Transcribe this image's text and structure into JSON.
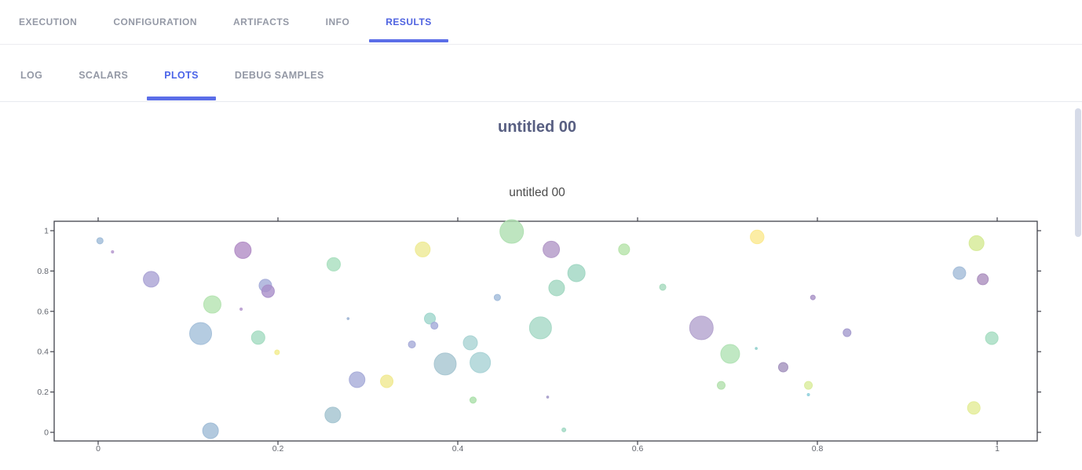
{
  "main_tabs": {
    "active": "RESULTS",
    "items": [
      {
        "label": "EXECUTION"
      },
      {
        "label": "CONFIGURATION"
      },
      {
        "label": "ARTIFACTS"
      },
      {
        "label": "INFO"
      },
      {
        "label": "RESULTS"
      }
    ]
  },
  "sub_tabs": {
    "active": "PLOTS",
    "items": [
      {
        "label": "LOG"
      },
      {
        "label": "SCALARS"
      },
      {
        "label": "PLOTS"
      },
      {
        "label": "DEBUG SAMPLES"
      }
    ]
  },
  "accent_color": "#4e62e0",
  "card_title": "untitled 00",
  "chart_data": {
    "type": "scatter",
    "title": "untitled 00",
    "xlabel": "",
    "ylabel": "",
    "xlim": [
      -0.05,
      1.045
    ],
    "ylim": [
      -0.045,
      1.045
    ],
    "grid": false,
    "legend": null,
    "x_ticks": [
      0,
      0.2,
      0.4,
      0.6,
      0.8,
      1
    ],
    "x_tick_labels": [
      "0",
      "0.2",
      "0.4",
      "0.6",
      "0.8",
      "1"
    ],
    "y_ticks": [
      0,
      0.2,
      0.4,
      0.6,
      0.8,
      1
    ],
    "y_tick_labels": [
      "0",
      "0.2",
      "0.4",
      "0.6",
      "0.8",
      "1"
    ],
    "points": [
      {
        "x": 0.002,
        "y": 0.95,
        "r": 4,
        "color": "#9fbcd8"
      },
      {
        "x": 0.016,
        "y": 0.895,
        "r": 1.5,
        "color": "#b79bd0"
      },
      {
        "x": 0.059,
        "y": 0.759,
        "r": 10,
        "color": "#aaa2d4"
      },
      {
        "x": 0.161,
        "y": 0.903,
        "r": 10.5,
        "color": "#b18cc5"
      },
      {
        "x": 0.186,
        "y": 0.728,
        "r": 8,
        "color": "#a4abd8"
      },
      {
        "x": 0.189,
        "y": 0.7,
        "r": 8,
        "color": "#a98fc9"
      },
      {
        "x": 0.127,
        "y": 0.634,
        "r": 11,
        "color": "#b4e3b0"
      },
      {
        "x": 0.159,
        "y": 0.611,
        "r": 1.5,
        "color": "#b79bd0"
      },
      {
        "x": 0.114,
        "y": 0.49,
        "r": 14,
        "color": "#a3bfd9"
      },
      {
        "x": 0.178,
        "y": 0.47,
        "r": 8.5,
        "color": "#a3dbc0"
      },
      {
        "x": 0.199,
        "y": 0.397,
        "r": 3,
        "color": "#f2ec8d"
      },
      {
        "x": 0.262,
        "y": 0.833,
        "r": 8.5,
        "color": "#a8dfbe"
      },
      {
        "x": 0.361,
        "y": 0.907,
        "r": 9.5,
        "color": "#eeea93"
      },
      {
        "x": 0.46,
        "y": 0.996,
        "r": 15,
        "color": "#aedfb0"
      },
      {
        "x": 0.444,
        "y": 0.669,
        "r": 4,
        "color": "#a0bada"
      },
      {
        "x": 0.278,
        "y": 0.564,
        "r": 1.3,
        "color": "#9eb4d4"
      },
      {
        "x": 0.369,
        "y": 0.564,
        "r": 7,
        "color": "#9fd6cc"
      },
      {
        "x": 0.374,
        "y": 0.529,
        "r": 4.5,
        "color": "#a2aad8"
      },
      {
        "x": 0.349,
        "y": 0.436,
        "r": 4.5,
        "color": "#a6abd8"
      },
      {
        "x": 0.414,
        "y": 0.444,
        "r": 9,
        "color": "#a9d3d3"
      },
      {
        "x": 0.386,
        "y": 0.339,
        "r": 14,
        "color": "#a6c5d1"
      },
      {
        "x": 0.425,
        "y": 0.346,
        "r": 13,
        "color": "#a8d2d5"
      },
      {
        "x": 0.288,
        "y": 0.261,
        "r": 10,
        "color": "#a6abd8"
      },
      {
        "x": 0.321,
        "y": 0.253,
        "r": 8,
        "color": "#f0e98f"
      },
      {
        "x": 0.417,
        "y": 0.16,
        "r": 4,
        "color": "#aadfa9"
      },
      {
        "x": 0.261,
        "y": 0.086,
        "r": 10,
        "color": "#a2c3cf"
      },
      {
        "x": 0.125,
        "y": 0.008,
        "r": 10,
        "color": "#9fbcd6"
      },
      {
        "x": 0.518,
        "y": 0.012,
        "r": 2.5,
        "color": "#9fd8c2"
      },
      {
        "x": 0.5,
        "y": 0.175,
        "r": 1.3,
        "color": "#a39ac8"
      },
      {
        "x": 0.504,
        "y": 0.907,
        "r": 10.5,
        "color": "#b297c7"
      },
      {
        "x": 0.585,
        "y": 0.907,
        "r": 7,
        "color": "#b5e3a9"
      },
      {
        "x": 0.532,
        "y": 0.79,
        "r": 11,
        "color": "#9fd6c2"
      },
      {
        "x": 0.51,
        "y": 0.716,
        "r": 10,
        "color": "#a1d7c0"
      },
      {
        "x": 0.628,
        "y": 0.72,
        "r": 4,
        "color": "#a5dabd"
      },
      {
        "x": 0.733,
        "y": 0.969,
        "r": 8.7,
        "color": "#fbe98e"
      },
      {
        "x": 0.795,
        "y": 0.669,
        "r": 3,
        "color": "#a891c6"
      },
      {
        "x": 0.492,
        "y": 0.518,
        "r": 14,
        "color": "#a5d8c5"
      },
      {
        "x": 0.671,
        "y": 0.518,
        "r": 15,
        "color": "#b3a3ce"
      },
      {
        "x": 0.703,
        "y": 0.389,
        "r": 12,
        "color": "#b0e2b4"
      },
      {
        "x": 0.732,
        "y": 0.416,
        "r": 1.3,
        "color": "#8fd0cc"
      },
      {
        "x": 0.762,
        "y": 0.323,
        "r": 6,
        "color": "#a291bd"
      },
      {
        "x": 0.693,
        "y": 0.233,
        "r": 5,
        "color": "#b2e0ac"
      },
      {
        "x": 0.79,
        "y": 0.233,
        "r": 5,
        "color": "#d9ec9b"
      },
      {
        "x": 0.79,
        "y": 0.187,
        "r": 1.5,
        "color": "#8fd0dc"
      },
      {
        "x": 0.833,
        "y": 0.494,
        "r": 5,
        "color": "#a49bce"
      },
      {
        "x": 0.977,
        "y": 0.938,
        "r": 9.5,
        "color": "#d5ea93"
      },
      {
        "x": 0.958,
        "y": 0.79,
        "r": 8,
        "color": "#a2bcd8"
      },
      {
        "x": 0.984,
        "y": 0.759,
        "r": 7,
        "color": "#ab8fbe"
      },
      {
        "x": 0.994,
        "y": 0.467,
        "r": 8,
        "color": "#a4dcc0"
      },
      {
        "x": 0.974,
        "y": 0.121,
        "r": 8,
        "color": "#e3ec96"
      }
    ]
  }
}
